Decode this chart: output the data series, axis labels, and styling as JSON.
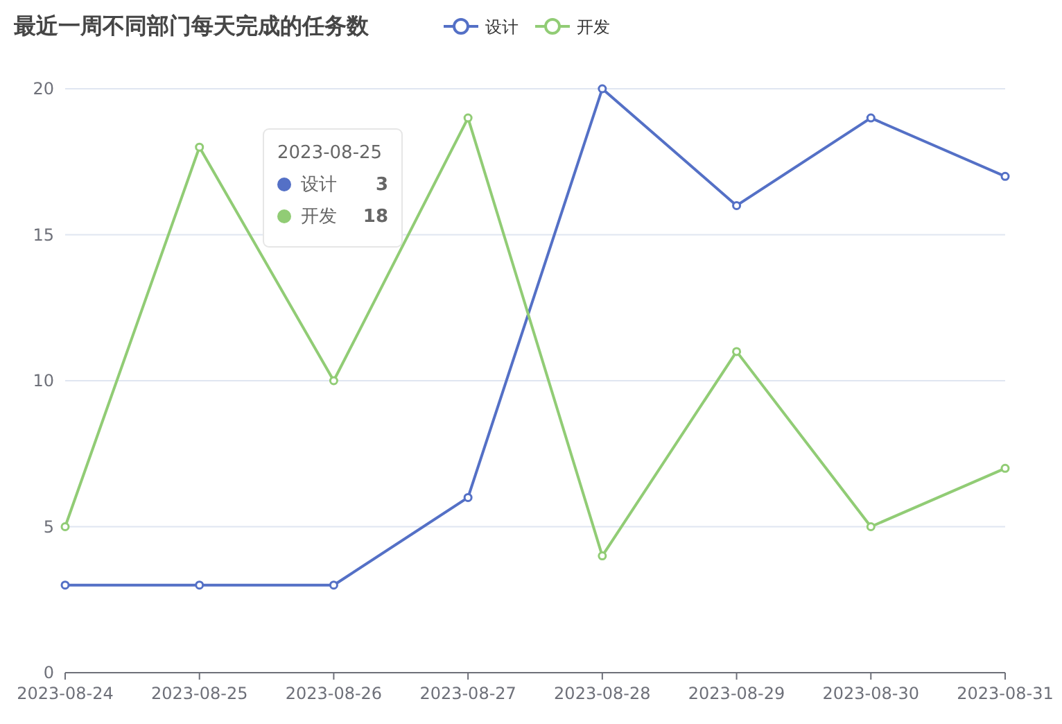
{
  "chart_data": {
    "type": "line",
    "title": "最近一周不同部门每天完成的任务数",
    "categories": [
      "2023-08-24",
      "2023-08-25",
      "2023-08-26",
      "2023-08-27",
      "2023-08-28",
      "2023-08-29",
      "2023-08-30",
      "2023-08-31"
    ],
    "series": [
      {
        "name": "设计",
        "color": "#5470c6",
        "values": [
          3,
          3,
          3,
          6,
          20,
          16,
          19,
          17
        ]
      },
      {
        "name": "开发",
        "color": "#91cc75",
        "values": [
          5,
          18,
          10,
          19,
          4,
          11,
          5,
          7
        ]
      }
    ],
    "ylim": [
      0,
      20
    ],
    "yticks": [
      0,
      5,
      10,
      15,
      20
    ],
    "grid": "y",
    "legend": "top",
    "marker": "circle",
    "line_style": "solid",
    "annotations": [
      "2023-08-25",
      "3",
      "18"
    ]
  }
}
